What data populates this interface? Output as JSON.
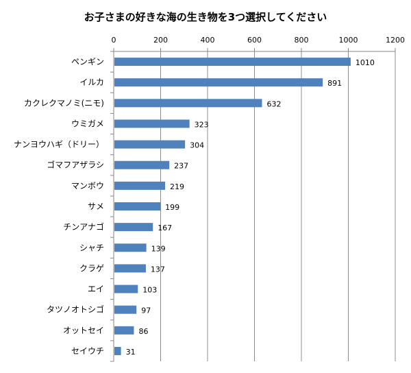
{
  "chart_data": {
    "type": "bar",
    "orientation": "horizontal",
    "title": "お子さまの好きな海の生き物を3つ選択してください",
    "categories": [
      "ペンギン",
      "イルカ",
      "カクレクマノミ(ニモ)",
      "ウミガメ",
      "ナンヨウハギ（ドリー）",
      "ゴマフアザラシ",
      "マンボウ",
      "サメ",
      "チンアナゴ",
      "シャチ",
      "クラゲ",
      "エイ",
      "タツノオトシゴ",
      "オットセイ",
      "セイウチ"
    ],
    "values": [
      1010,
      891,
      632,
      323,
      304,
      237,
      219,
      199,
      167,
      139,
      137,
      103,
      97,
      86,
      31
    ],
    "xlim": [
      0,
      1200
    ],
    "xticks": [
      "0",
      "200",
      "400",
      "600",
      "800",
      "1000",
      "1200"
    ],
    "x_axis_position": "top",
    "grid": true,
    "data_labels": true,
    "colors": {
      "bar": "#4f81bd",
      "grid": "#8c8c8c",
      "axis": "#868686"
    }
  }
}
